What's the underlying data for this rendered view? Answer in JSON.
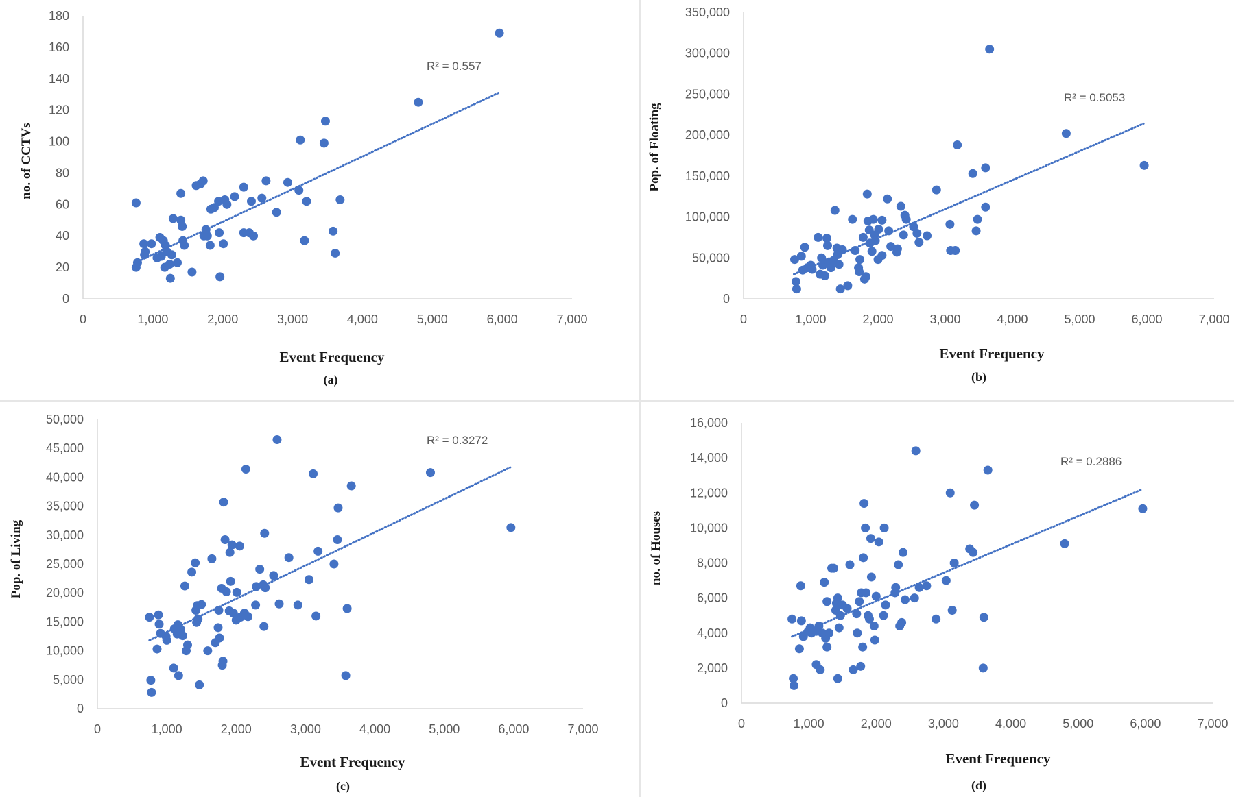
{
  "colors": {
    "point": "#4472c4",
    "trend": "#4472c4",
    "axis": "#d9d9d9",
    "text": "#595959"
  },
  "chart_data": [
    {
      "id": "a",
      "type": "scatter",
      "caption": "(a)",
      "xlabel": "Event Frequency",
      "ylabel": "no. of CCTVs",
      "r2_label": "R² = 0.557",
      "xlim": [
        0,
        7000
      ],
      "ylim": [
        0,
        180
      ],
      "xticks": [
        0,
        1000,
        2000,
        3000,
        4000,
        5000,
        6000,
        7000
      ],
      "xtick_labels": [
        "0",
        "1,000",
        "2,000",
        "3,000",
        "4,000",
        "5,000",
        "6,000",
        "7,000"
      ],
      "yticks": [
        0,
        20,
        40,
        60,
        80,
        100,
        120,
        140,
        160,
        180
      ],
      "ytick_labels": [
        "0",
        "20",
        "40",
        "60",
        "80",
        "100",
        "120",
        "140",
        "160",
        "180"
      ],
      "trendline": {
        "x": [
          750,
          5950
        ],
        "y": [
          23,
          131
        ]
      },
      "points": [
        [
          760,
          61
        ],
        [
          760,
          20
        ],
        [
          780,
          23
        ],
        [
          870,
          35
        ],
        [
          880,
          28
        ],
        [
          890,
          30
        ],
        [
          980,
          35
        ],
        [
          1060,
          26
        ],
        [
          1100,
          39
        ],
        [
          1120,
          27
        ],
        [
          1150,
          37
        ],
        [
          1170,
          20
        ],
        [
          1180,
          34
        ],
        [
          1200,
          30
        ],
        [
          1240,
          22
        ],
        [
          1250,
          13
        ],
        [
          1270,
          28
        ],
        [
          1290,
          51
        ],
        [
          1350,
          23
        ],
        [
          1400,
          67
        ],
        [
          1400,
          50
        ],
        [
          1420,
          46
        ],
        [
          1430,
          37
        ],
        [
          1450,
          34
        ],
        [
          1560,
          17
        ],
        [
          1620,
          72
        ],
        [
          1680,
          73
        ],
        [
          1720,
          75
        ],
        [
          1730,
          40
        ],
        [
          1760,
          44
        ],
        [
          1780,
          40
        ],
        [
          1820,
          34
        ],
        [
          1830,
          57
        ],
        [
          1880,
          58
        ],
        [
          1940,
          62
        ],
        [
          1950,
          42
        ],
        [
          1960,
          14
        ],
        [
          2010,
          35
        ],
        [
          2030,
          63
        ],
        [
          2060,
          60
        ],
        [
          2170,
          65
        ],
        [
          2300,
          71
        ],
        [
          2300,
          42
        ],
        [
          2380,
          42
        ],
        [
          2410,
          62
        ],
        [
          2440,
          40
        ],
        [
          2560,
          64
        ],
        [
          2620,
          75
        ],
        [
          2770,
          55
        ],
        [
          2930,
          74
        ],
        [
          3090,
          69
        ],
        [
          3110,
          101
        ],
        [
          3170,
          37
        ],
        [
          3200,
          62
        ],
        [
          3450,
          99
        ],
        [
          3470,
          113
        ],
        [
          3580,
          43
        ],
        [
          3610,
          29
        ],
        [
          3680,
          63
        ],
        [
          4800,
          125
        ],
        [
          5960,
          169
        ]
      ]
    },
    {
      "id": "b",
      "type": "scatter",
      "caption": "(b)",
      "xlabel": "Event Frequency",
      "ylabel": "Pop. of Floating",
      "r2_label": "R² = 0.5053",
      "xlim": [
        0,
        7000
      ],
      "ylim": [
        0,
        350000
      ],
      "xticks": [
        0,
        1000,
        2000,
        3000,
        4000,
        5000,
        6000,
        7000
      ],
      "xtick_labels": [
        "0",
        "1,000",
        "2,000",
        "3,000",
        "4,000",
        "5,000",
        "6,000",
        "7,000"
      ],
      "yticks": [
        0,
        50000,
        100000,
        150000,
        200000,
        250000,
        300000,
        350000
      ],
      "ytick_labels": [
        "0",
        "50,000",
        "100,000",
        "150,000",
        "200,000",
        "250,000",
        "300,000",
        "350,000"
      ],
      "trendline": {
        "x": [
          750,
          5950
        ],
        "y": [
          30000,
          214000
        ]
      },
      "points": [
        [
          760,
          48000
        ],
        [
          780,
          21000
        ],
        [
          790,
          12000
        ],
        [
          860,
          52000
        ],
        [
          880,
          35000
        ],
        [
          910,
          63000
        ],
        [
          950,
          38000
        ],
        [
          1000,
          41000
        ],
        [
          1020,
          36000
        ],
        [
          1110,
          75000
        ],
        [
          1140,
          30000
        ],
        [
          1160,
          50000
        ],
        [
          1180,
          41000
        ],
        [
          1210,
          28000
        ],
        [
          1240,
          74000
        ],
        [
          1250,
          65000
        ],
        [
          1270,
          45000
        ],
        [
          1300,
          38000
        ],
        [
          1340,
          47000
        ],
        [
          1360,
          108000
        ],
        [
          1390,
          62000
        ],
        [
          1400,
          54000
        ],
        [
          1420,
          42000
        ],
        [
          1440,
          12000
        ],
        [
          1470,
          60000
        ],
        [
          1550,
          16000
        ],
        [
          1620,
          97000
        ],
        [
          1660,
          59000
        ],
        [
          1710,
          38000
        ],
        [
          1720,
          33000
        ],
        [
          1730,
          48000
        ],
        [
          1780,
          75000
        ],
        [
          1800,
          24000
        ],
        [
          1820,
          27000
        ],
        [
          1840,
          128000
        ],
        [
          1850,
          95000
        ],
        [
          1870,
          84000
        ],
        [
          1880,
          68000
        ],
        [
          1910,
          58000
        ],
        [
          1930,
          97000
        ],
        [
          1950,
          78000
        ],
        [
          1960,
          71000
        ],
        [
          2000,
          48000
        ],
        [
          2010,
          85000
        ],
        [
          2060,
          53000
        ],
        [
          2060,
          96000
        ],
        [
          2140,
          122000
        ],
        [
          2160,
          83000
        ],
        [
          2190,
          64000
        ],
        [
          2280,
          57000
        ],
        [
          2290,
          61000
        ],
        [
          2340,
          113000
        ],
        [
          2380,
          78000
        ],
        [
          2400,
          102000
        ],
        [
          2420,
          97000
        ],
        [
          2530,
          88000
        ],
        [
          2580,
          80000
        ],
        [
          2610,
          69000
        ],
        [
          2730,
          77000
        ],
        [
          2870,
          133000
        ],
        [
          3070,
          91000
        ],
        [
          3080,
          59000
        ],
        [
          3150,
          59000
        ],
        [
          3180,
          188000
        ],
        [
          3410,
          153000
        ],
        [
          3460,
          83000
        ],
        [
          3480,
          97000
        ],
        [
          3600,
          160000
        ],
        [
          3600,
          112000
        ],
        [
          3660,
          305000
        ],
        [
          4800,
          202000
        ],
        [
          5960,
          163000
        ]
      ]
    },
    {
      "id": "c",
      "type": "scatter",
      "caption": "(c)",
      "xlabel": "Event Frequency",
      "ylabel": "Pop. of Living",
      "r2_label": "R² = 0.3272",
      "xlim": [
        0,
        7000
      ],
      "ylim": [
        0,
        50000
      ],
      "xticks": [
        0,
        1000,
        2000,
        3000,
        4000,
        5000,
        6000,
        7000
      ],
      "xtick_labels": [
        "0",
        "1,000",
        "2,000",
        "3,000",
        "4,000",
        "5,000",
        "6,000",
        "7,000"
      ],
      "yticks": [
        0,
        5000,
        10000,
        15000,
        20000,
        25000,
        30000,
        35000,
        40000,
        45000,
        50000
      ],
      "ytick_labels": [
        "0",
        "5,000",
        "10,000",
        "15,000",
        "20,000",
        "25,000",
        "30,000",
        "35,000",
        "40,000",
        "45,000",
        "50,000"
      ],
      "trendline": {
        "x": [
          750,
          5950
        ],
        "y": [
          11800,
          41700
        ]
      },
      "points": [
        [
          750,
          15800
        ],
        [
          770,
          4900
        ],
        [
          780,
          2800
        ],
        [
          860,
          10300
        ],
        [
          880,
          16200
        ],
        [
          890,
          14600
        ],
        [
          910,
          13000
        ],
        [
          990,
          12500
        ],
        [
          1000,
          11800
        ],
        [
          1100,
          7000
        ],
        [
          1110,
          13800
        ],
        [
          1150,
          12900
        ],
        [
          1160,
          14500
        ],
        [
          1170,
          5700
        ],
        [
          1200,
          13700
        ],
        [
          1230,
          12600
        ],
        [
          1260,
          21200
        ],
        [
          1280,
          10000
        ],
        [
          1300,
          11000
        ],
        [
          1360,
          23600
        ],
        [
          1410,
          25200
        ],
        [
          1420,
          17000
        ],
        [
          1430,
          14900
        ],
        [
          1440,
          17800
        ],
        [
          1450,
          15500
        ],
        [
          1470,
          4100
        ],
        [
          1500,
          18000
        ],
        [
          1590,
          10000
        ],
        [
          1650,
          25900
        ],
        [
          1700,
          11400
        ],
        [
          1740,
          14000
        ],
        [
          1750,
          17000
        ],
        [
          1760,
          12200
        ],
        [
          1790,
          20800
        ],
        [
          1800,
          7500
        ],
        [
          1810,
          8200
        ],
        [
          1820,
          35700
        ],
        [
          1840,
          29200
        ],
        [
          1860,
          20200
        ],
        [
          1900,
          16900
        ],
        [
          1910,
          27000
        ],
        [
          1920,
          22000
        ],
        [
          1940,
          28300
        ],
        [
          1960,
          16500
        ],
        [
          2000,
          15300
        ],
        [
          2010,
          20100
        ],
        [
          2050,
          28100
        ],
        [
          2060,
          15800
        ],
        [
          2120,
          16500
        ],
        [
          2140,
          41400
        ],
        [
          2170,
          15900
        ],
        [
          2280,
          17900
        ],
        [
          2290,
          21100
        ],
        [
          2340,
          24100
        ],
        [
          2390,
          21400
        ],
        [
          2400,
          14200
        ],
        [
          2410,
          30300
        ],
        [
          2420,
          20900
        ],
        [
          2540,
          23000
        ],
        [
          2590,
          46500
        ],
        [
          2620,
          18100
        ],
        [
          2760,
          26100
        ],
        [
          2890,
          17900
        ],
        [
          3050,
          22300
        ],
        [
          3110,
          40600
        ],
        [
          3150,
          16000
        ],
        [
          3180,
          27200
        ],
        [
          3410,
          25000
        ],
        [
          3460,
          29200
        ],
        [
          3470,
          34700
        ],
        [
          3580,
          5700
        ],
        [
          3600,
          17300
        ],
        [
          3660,
          38500
        ],
        [
          4800,
          40800
        ],
        [
          5960,
          31300
        ]
      ]
    },
    {
      "id": "d",
      "type": "scatter",
      "caption": "(d)",
      "xlabel": "Event Frequency",
      "ylabel": "no. of Houses",
      "r2_label": "R² = 0.2886",
      "xlim": [
        0,
        7000
      ],
      "ylim": [
        0,
        16000
      ],
      "xticks": [
        0,
        1000,
        2000,
        3000,
        4000,
        5000,
        6000,
        7000
      ],
      "xtick_labels": [
        "0",
        "1,000",
        "2,000",
        "3,000",
        "4,000",
        "5,000",
        "6,000",
        "7,000"
      ],
      "yticks": [
        0,
        2000,
        4000,
        6000,
        8000,
        10000,
        12000,
        14000,
        16000
      ],
      "ytick_labels": [
        "0",
        "2,000",
        "4,000",
        "6,000",
        "8,000",
        "10,000",
        "12,000",
        "14,000",
        "16,000"
      ],
      "trendline": {
        "x": [
          750,
          5950
        ],
        "y": [
          3800,
          12200
        ]
      },
      "points": [
        [
          750,
          4800
        ],
        [
          770,
          1400
        ],
        [
          780,
          1000
        ],
        [
          860,
          3100
        ],
        [
          880,
          6700
        ],
        [
          890,
          4700
        ],
        [
          920,
          3800
        ],
        [
          990,
          4100
        ],
        [
          1020,
          4300
        ],
        [
          1040,
          4000
        ],
        [
          1110,
          4100
        ],
        [
          1110,
          2200
        ],
        [
          1150,
          4400
        ],
        [
          1170,
          1900
        ],
        [
          1200,
          4000
        ],
        [
          1230,
          6900
        ],
        [
          1250,
          3700
        ],
        [
          1270,
          3200
        ],
        [
          1270,
          5800
        ],
        [
          1300,
          4000
        ],
        [
          1340,
          7700
        ],
        [
          1370,
          7700
        ],
        [
          1400,
          5300
        ],
        [
          1410,
          5700
        ],
        [
          1430,
          1400
        ],
        [
          1430,
          6000
        ],
        [
          1450,
          4300
        ],
        [
          1470,
          5000
        ],
        [
          1500,
          5600
        ],
        [
          1570,
          5400
        ],
        [
          1610,
          7900
        ],
        [
          1660,
          1900
        ],
        [
          1710,
          5100
        ],
        [
          1720,
          4000
        ],
        [
          1750,
          5800
        ],
        [
          1770,
          2100
        ],
        [
          1780,
          6300
        ],
        [
          1800,
          3200
        ],
        [
          1810,
          8300
        ],
        [
          1820,
          11400
        ],
        [
          1840,
          10000
        ],
        [
          1850,
          6300
        ],
        [
          1880,
          5000
        ],
        [
          1900,
          4800
        ],
        [
          1920,
          9400
        ],
        [
          1930,
          7200
        ],
        [
          1970,
          4400
        ],
        [
          1980,
          3600
        ],
        [
          2000,
          6100
        ],
        [
          2040,
          9200
        ],
        [
          2110,
          5000
        ],
        [
          2120,
          10000
        ],
        [
          2140,
          5600
        ],
        [
          2280,
          6300
        ],
        [
          2290,
          6600
        ],
        [
          2330,
          7900
        ],
        [
          2350,
          4400
        ],
        [
          2380,
          4600
        ],
        [
          2400,
          8600
        ],
        [
          2430,
          5900
        ],
        [
          2570,
          6000
        ],
        [
          2590,
          14400
        ],
        [
          2640,
          6600
        ],
        [
          2750,
          6700
        ],
        [
          2890,
          4800
        ],
        [
          3040,
          7000
        ],
        [
          3100,
          12000
        ],
        [
          3130,
          5300
        ],
        [
          3160,
          8000
        ],
        [
          3390,
          8800
        ],
        [
          3440,
          8600
        ],
        [
          3460,
          11300
        ],
        [
          3590,
          2000
        ],
        [
          3600,
          4900
        ],
        [
          3660,
          13300
        ],
        [
          4800,
          9100
        ],
        [
          5960,
          11100
        ]
      ]
    }
  ]
}
